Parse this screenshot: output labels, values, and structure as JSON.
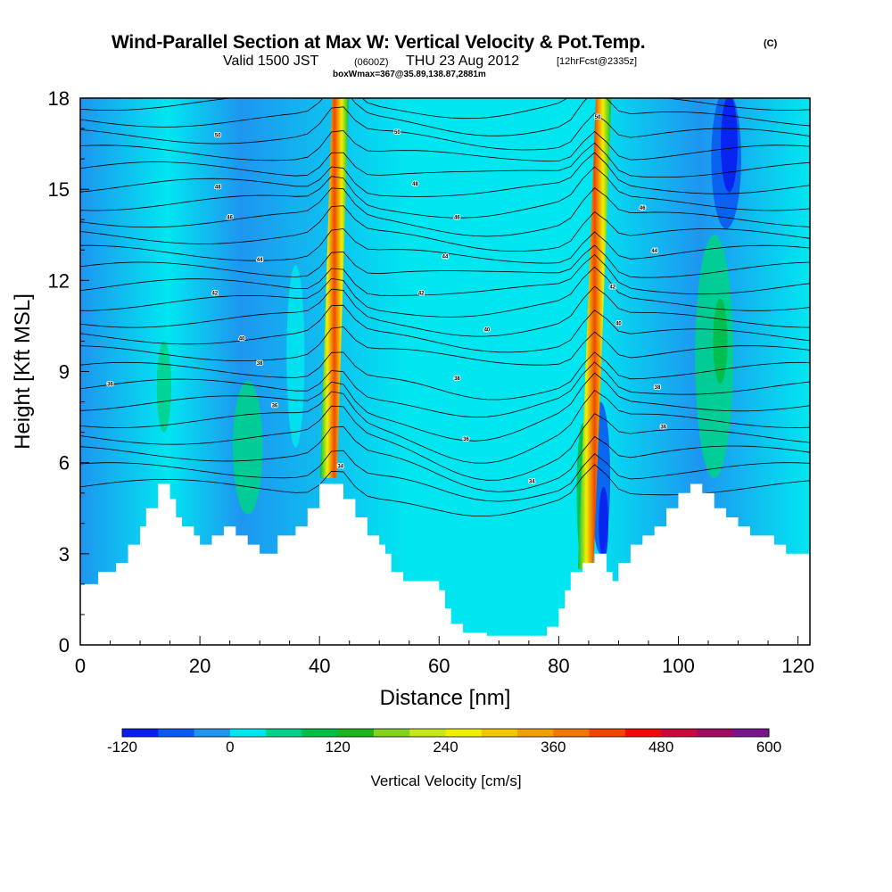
{
  "header": {
    "title": "Wind-Parallel Section at Max W: Vertical Velocity & Pot.Temp.",
    "copyright": "(C)",
    "valid_prefix": "Valid 1500 JST",
    "valid_utc": "(0600Z)",
    "valid_date": "THU 23 Aug 2012",
    "forecast": "[12hrFcst@2335z]",
    "boxwmax": "boxWmax=367@35.89,138.87,2881m"
  },
  "chart_data": {
    "type": "contour-section",
    "xlabel": "Distance [nm]",
    "ylabel": "Height [Kft MSL]",
    "xlim": [
      0,
      122
    ],
    "ylim": [
      0,
      18
    ],
    "x_ticks": [
      0,
      20,
      40,
      60,
      80,
      100,
      120
    ],
    "y_ticks": [
      0,
      3,
      6,
      9,
      12,
      15,
      18
    ],
    "colorbar": {
      "label": "Vertical Velocity [cm/s]",
      "min": -120,
      "max": 600,
      "step": 40,
      "tick_labels": [
        "-120",
        "0",
        "120",
        "240",
        "360",
        "480",
        "600"
      ],
      "colors": [
        "#0a1ef0",
        "#0a5af0",
        "#1e96f0",
        "#00e6f0",
        "#00d28c",
        "#00be46",
        "#1eb41e",
        "#82d21e",
        "#c8e61e",
        "#f0f000",
        "#f0c800",
        "#f0a000",
        "#f07800",
        "#f04600",
        "#f00a0a",
        "#c80a3c",
        "#a00a64",
        "#78148c"
      ]
    },
    "terrain_top_kft": [
      [
        0,
        2
      ],
      [
        3,
        2.4
      ],
      [
        6,
        2.7
      ],
      [
        8,
        3.3
      ],
      [
        10,
        3.9
      ],
      [
        11,
        4.5
      ],
      [
        13,
        5.3
      ],
      [
        15,
        4.8
      ],
      [
        16,
        4.2
      ],
      [
        17,
        3.9
      ],
      [
        19,
        3.6
      ],
      [
        20,
        3.3
      ],
      [
        21,
        3.3
      ],
      [
        22,
        3.6
      ],
      [
        24,
        3.9
      ],
      [
        26,
        3.6
      ],
      [
        28,
        3.3
      ],
      [
        30,
        3.0
      ],
      [
        33,
        3.6
      ],
      [
        36,
        3.9
      ],
      [
        38,
        4.5
      ],
      [
        40,
        5.3
      ],
      [
        43,
        5.3
      ],
      [
        44,
        4.8
      ],
      [
        46,
        4.2
      ],
      [
        48,
        3.6
      ],
      [
        50,
        3.3
      ],
      [
        51,
        3.0
      ],
      [
        52,
        2.4
      ],
      [
        54,
        2.1
      ],
      [
        56,
        2.1
      ],
      [
        58,
        2.1
      ],
      [
        60,
        1.8
      ],
      [
        61,
        1.2
      ],
      [
        62,
        0.7
      ],
      [
        64,
        0.4
      ],
      [
        68,
        0.3
      ],
      [
        72,
        0.3
      ],
      [
        76,
        0.3
      ],
      [
        78,
        0.6
      ],
      [
        80,
        1.2
      ],
      [
        81,
        1.8
      ],
      [
        82,
        2.4
      ],
      [
        84,
        2.7
      ],
      [
        86,
        3.0
      ],
      [
        88,
        2.4
      ],
      [
        89,
        2.1
      ],
      [
        90,
        2.7
      ],
      [
        92,
        3.3
      ],
      [
        94,
        3.6
      ],
      [
        96,
        3.9
      ],
      [
        98,
        4.5
      ],
      [
        100,
        5.0
      ],
      [
        102,
        5.3
      ],
      [
        104,
        5.0
      ],
      [
        106,
        4.5
      ],
      [
        108,
        4.2
      ],
      [
        110,
        3.9
      ],
      [
        112,
        3.6
      ],
      [
        116,
        3.3
      ],
      [
        118,
        3.0
      ],
      [
        120,
        3.0
      ],
      [
        122,
        3.3
      ]
    ],
    "theta_contour_labels": [
      {
        "x": 23,
        "y": 16.8,
        "text": "50"
      },
      {
        "x": 53,
        "y": 16.9,
        "text": "50"
      },
      {
        "x": 23,
        "y": 15.1,
        "text": "48"
      },
      {
        "x": 56,
        "y": 15.2,
        "text": "48"
      },
      {
        "x": 86.5,
        "y": 17.4,
        "text": "50"
      },
      {
        "x": 25,
        "y": 14.1,
        "text": "46"
      },
      {
        "x": 63,
        "y": 14.1,
        "text": "46"
      },
      {
        "x": 94,
        "y": 14.4,
        "text": "46"
      },
      {
        "x": 30,
        "y": 12.7,
        "text": "44"
      },
      {
        "x": 61,
        "y": 12.8,
        "text": "44"
      },
      {
        "x": 96,
        "y": 13.0,
        "text": "44"
      },
      {
        "x": 22.5,
        "y": 11.6,
        "text": "42"
      },
      {
        "x": 57,
        "y": 11.6,
        "text": "42"
      },
      {
        "x": 89,
        "y": 11.8,
        "text": "42"
      },
      {
        "x": 27,
        "y": 10.1,
        "text": "40"
      },
      {
        "x": 68,
        "y": 10.4,
        "text": "40"
      },
      {
        "x": 90,
        "y": 10.6,
        "text": "40"
      },
      {
        "x": 30,
        "y": 9.3,
        "text": "38"
      },
      {
        "x": 63,
        "y": 8.8,
        "text": "38"
      },
      {
        "x": 96.5,
        "y": 8.5,
        "text": "38"
      },
      {
        "x": 5,
        "y": 8.6,
        "text": "36"
      },
      {
        "x": 32.5,
        "y": 7.9,
        "text": "36"
      },
      {
        "x": 64.5,
        "y": 6.8,
        "text": "36"
      },
      {
        "x": 97.5,
        "y": 7.2,
        "text": "36"
      },
      {
        "x": 43.5,
        "y": 5.9,
        "text": "34"
      },
      {
        "x": 75.5,
        "y": 5.4,
        "text": "34"
      }
    ]
  }
}
